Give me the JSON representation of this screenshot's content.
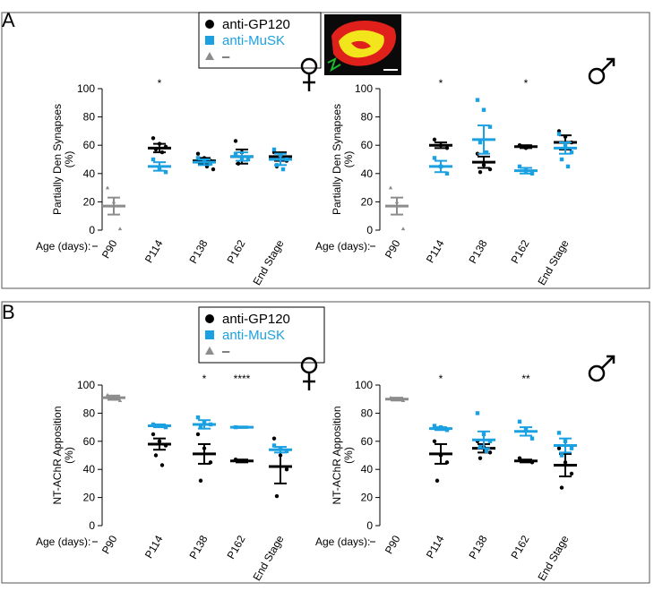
{
  "colors": {
    "gp120": "#000000",
    "musk": "#1ba1e2",
    "control": "#8c8c8c",
    "frame": "#555555",
    "micro_red": "#e0201a",
    "micro_yellow": "#f2e51c",
    "micro_green": "#22b530"
  },
  "legend": {
    "entries": [
      {
        "label": "anti-GP120",
        "marker": "circle",
        "color": "#000000"
      },
      {
        "label": "anti-MuSK",
        "marker": "square",
        "color": "#1ba1e2"
      },
      {
        "label": "–",
        "marker": "triangle",
        "color": "#8c8c8c"
      }
    ]
  },
  "panels": [
    {
      "letter": "A",
      "ylabel": "Partially Den Synapses\n(%)"
    },
    {
      "letter": "B",
      "ylabel": "NT-AChR Apposition\n(%)"
    }
  ],
  "age_label": "Age (days):",
  "sex_symbols": {
    "female": "♀",
    "male": "♂"
  },
  "chart_data": [
    {
      "type": "scatter",
      "panel": "A",
      "sex": "female",
      "ylabel": "Partially Den Synapses (%)",
      "ylim": [
        0,
        100
      ],
      "yticks": [
        0,
        20,
        40,
        60,
        80,
        100
      ],
      "categories": [
        "P90",
        "P114",
        "P138",
        "P162",
        "End Stage"
      ],
      "significance": [
        "",
        "*",
        "",
        "",
        ""
      ],
      "series": [
        {
          "name": "anti-GP120",
          "points": [
            {
              "cat": 1,
              "mean": 58,
              "err": 3,
              "pts": [
                65,
                61,
                59,
                57,
                55
              ]
            },
            {
              "cat": 2,
              "mean": 49,
              "err": 2,
              "pts": [
                54,
                51,
                49,
                47,
                45,
                43
              ]
            },
            {
              "cat": 3,
              "mean": 52,
              "err": 5,
              "pts": [
                63,
                55,
                51,
                47
              ]
            },
            {
              "cat": 4,
              "mean": 52,
              "err": 3,
              "pts": [
                55,
                53,
                49,
                45
              ]
            }
          ]
        },
        {
          "name": "anti-MuSK",
          "points": [
            {
              "cat": 1,
              "mean": 45,
              "err": 3,
              "pts": [
                50,
                43,
                41
              ]
            },
            {
              "cat": 2,
              "mean": 48,
              "err": 2,
              "pts": [
                51,
                49,
                47
              ]
            },
            {
              "cat": 3,
              "mean": 52,
              "err": 3,
              "pts": [
                54,
                51,
                50
              ]
            },
            {
              "cat": 4,
              "mean": 50,
              "err": 4,
              "pts": [
                57,
                53,
                50,
                46,
                43
              ]
            }
          ]
        },
        {
          "name": "–",
          "points": [
            {
              "cat": 0,
              "mean": 17,
              "err": 6,
              "pts": [
                30,
                20,
                1
              ]
            }
          ]
        }
      ]
    },
    {
      "type": "scatter",
      "panel": "A",
      "sex": "male",
      "ylabel": "Partially Den Synapses (%)",
      "ylim": [
        0,
        100
      ],
      "yticks": [
        0,
        20,
        40,
        60,
        80,
        100
      ],
      "categories": [
        "P90",
        "P114",
        "P138",
        "P162",
        "End Stage"
      ],
      "significance": [
        "",
        "*",
        "",
        "*",
        ""
      ],
      "series": [
        {
          "name": "anti-GP120",
          "points": [
            {
              "cat": 1,
              "mean": 60,
              "err": 2,
              "pts": [
                64,
                60,
                58
              ]
            },
            {
              "cat": 2,
              "mean": 48,
              "err": 4,
              "pts": [
                54,
                46,
                43,
                41
              ]
            },
            {
              "cat": 3,
              "mean": 59,
              "err": 1,
              "pts": [
                60,
                58
              ]
            },
            {
              "cat": 4,
              "mean": 62,
              "err": 5,
              "pts": [
                70,
                66,
                62
              ]
            }
          ]
        },
        {
          "name": "anti-MuSK",
          "points": [
            {
              "cat": 1,
              "mean": 45,
              "err": 4,
              "pts": [
                51,
                45,
                40
              ]
            },
            {
              "cat": 2,
              "mean": 64,
              "err": 10,
              "pts": [
                92,
                85,
                73,
                62,
                55
              ]
            },
            {
              "cat": 3,
              "mean": 42,
              "err": 2,
              "pts": [
                45,
                42,
                40
              ]
            },
            {
              "cat": 4,
              "mean": 58,
              "err": 4,
              "pts": [
                68,
                60,
                55,
                50,
                45
              ]
            }
          ]
        },
        {
          "name": "–",
          "points": [
            {
              "cat": 0,
              "mean": 17,
              "err": 6,
              "pts": [
                30,
                20,
                1
              ]
            }
          ]
        }
      ]
    },
    {
      "type": "scatter",
      "panel": "B",
      "sex": "female",
      "ylabel": "NT-AChR Apposition (%)",
      "ylim": [
        0,
        100
      ],
      "yticks": [
        0,
        20,
        40,
        60,
        80,
        100
      ],
      "categories": [
        "P90",
        "P114",
        "P138",
        "P162",
        "End Stage"
      ],
      "significance": [
        "",
        "",
        "*",
        "****",
        ""
      ],
      "series": [
        {
          "name": "anti-GP120",
          "points": [
            {
              "cat": 1,
              "mean": 58,
              "err": 4,
              "pts": [
                65,
                60,
                57,
                50,
                43
              ]
            },
            {
              "cat": 2,
              "mean": 51,
              "err": 7,
              "pts": [
                65,
                55,
                45,
                32
              ]
            },
            {
              "cat": 3,
              "mean": 46,
              "err": 1,
              "pts": [
                47,
                46
              ]
            },
            {
              "cat": 4,
              "mean": 42,
              "err": 12,
              "pts": [
                62,
                50,
                40,
                21
              ]
            }
          ]
        },
        {
          "name": "anti-MuSK",
          "points": [
            {
              "cat": 1,
              "mean": 71,
              "err": 1,
              "pts": [
                72,
                71,
                70
              ]
            },
            {
              "cat": 2,
              "mean": 72,
              "err": 3,
              "pts": [
                77,
                74,
                72,
                70
              ]
            },
            {
              "cat": 3,
              "mean": 70,
              "err": 0.5,
              "pts": [
                70
              ]
            },
            {
              "cat": 4,
              "mean": 54,
              "err": 2,
              "pts": [
                57,
                55,
                53
              ]
            }
          ]
        },
        {
          "name": "–",
          "points": [
            {
              "cat": 0,
              "mean": 91,
              "err": 1.5,
              "pts": [
                93,
                91,
                89
              ]
            }
          ]
        }
      ]
    },
    {
      "type": "scatter",
      "panel": "B",
      "sex": "male",
      "ylabel": "NT-AChR Apposition (%)",
      "ylim": [
        0,
        100
      ],
      "yticks": [
        0,
        20,
        40,
        60,
        80,
        100
      ],
      "categories": [
        "P90",
        "P114",
        "P138",
        "P162",
        "End Stage"
      ],
      "significance": [
        "",
        "*",
        "",
        "**",
        ""
      ],
      "series": [
        {
          "name": "anti-GP120",
          "points": [
            {
              "cat": 1,
              "mean": 51,
              "err": 7,
              "pts": [
                60,
                50,
                45,
                32
              ]
            },
            {
              "cat": 2,
              "mean": 55,
              "err": 3,
              "pts": [
                60,
                56,
                52,
                48
              ]
            },
            {
              "cat": 3,
              "mean": 46,
              "err": 1,
              "pts": [
                48,
                46,
                45
              ]
            },
            {
              "cat": 4,
              "mean": 43,
              "err": 8,
              "pts": [
                55,
                45,
                37,
                27
              ]
            }
          ]
        },
        {
          "name": "anti-MuSK",
          "points": [
            {
              "cat": 1,
              "mean": 69,
              "err": 1,
              "pts": [
                71,
                70,
                68
              ]
            },
            {
              "cat": 2,
              "mean": 61,
              "err": 6,
              "pts": [
                80,
                65,
                60,
                56,
                53
              ]
            },
            {
              "cat": 3,
              "mean": 67,
              "err": 3,
              "pts": [
                74,
                68,
                62
              ]
            },
            {
              "cat": 4,
              "mean": 57,
              "err": 5,
              "pts": [
                66,
                60,
                55,
                50
              ]
            }
          ]
        },
        {
          "name": "–",
          "points": [
            {
              "cat": 0,
              "mean": 90,
              "err": 1,
              "pts": [
                91,
                90,
                89
              ]
            }
          ]
        }
      ]
    }
  ]
}
